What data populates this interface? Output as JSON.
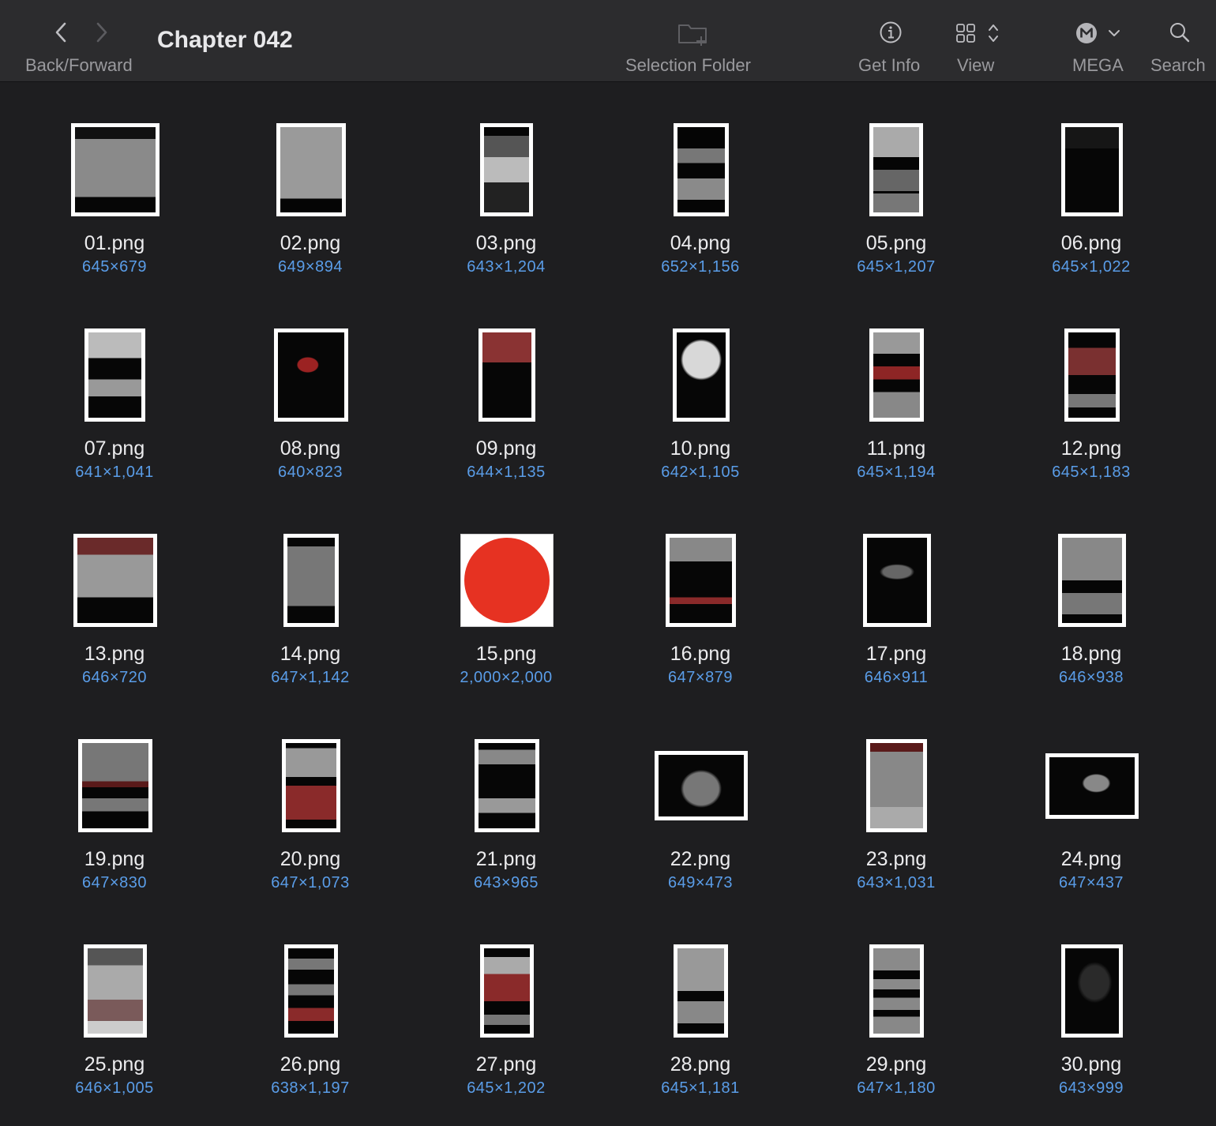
{
  "toolbar": {
    "back_forward_label": "Back/Forward",
    "title": "Chapter 042",
    "selection_folder_label": "Selection Folder",
    "get_info_label": "Get Info",
    "view_label": "View",
    "mega_label": "MEGA",
    "search_label": "Search"
  },
  "files": [
    {
      "name": "01.png",
      "dims": "645×679"
    },
    {
      "name": "02.png",
      "dims": "649×894"
    },
    {
      "name": "03.png",
      "dims": "643×1,204"
    },
    {
      "name": "04.png",
      "dims": "652×1,156"
    },
    {
      "name": "05.png",
      "dims": "645×1,207"
    },
    {
      "name": "06.png",
      "dims": "645×1,022"
    },
    {
      "name": "07.png",
      "dims": "641×1,041"
    },
    {
      "name": "08.png",
      "dims": "640×823"
    },
    {
      "name": "09.png",
      "dims": "644×1,135"
    },
    {
      "name": "10.png",
      "dims": "642×1,105"
    },
    {
      "name": "11.png",
      "dims": "645×1,194"
    },
    {
      "name": "12.png",
      "dims": "645×1,183"
    },
    {
      "name": "13.png",
      "dims": "646×720"
    },
    {
      "name": "14.png",
      "dims": "647×1,142"
    },
    {
      "name": "15.png",
      "dims": "2,000×2,000"
    },
    {
      "name": "16.png",
      "dims": "647×879"
    },
    {
      "name": "17.png",
      "dims": "646×911"
    },
    {
      "name": "18.png",
      "dims": "646×938"
    },
    {
      "name": "19.png",
      "dims": "647×830"
    },
    {
      "name": "20.png",
      "dims": "647×1,073"
    },
    {
      "name": "21.png",
      "dims": "643×965"
    },
    {
      "name": "22.png",
      "dims": "649×473"
    },
    {
      "name": "23.png",
      "dims": "643×1,031"
    },
    {
      "name": "24.png",
      "dims": "647×437"
    },
    {
      "name": "25.png",
      "dims": "646×1,005"
    },
    {
      "name": "26.png",
      "dims": "638×1,197"
    },
    {
      "name": "27.png",
      "dims": "645×1,202"
    },
    {
      "name": "28.png",
      "dims": "645×1,181"
    },
    {
      "name": "29.png",
      "dims": "647×1,180"
    },
    {
      "name": "30.png",
      "dims": "643×999"
    }
  ],
  "colors": {
    "toolbar_bg": "#2c2c2e",
    "content_bg": "#1e1e20",
    "filename_text": "#ececee",
    "dimension_text": "#5a9de8",
    "red_circle": "#e63222"
  },
  "icons": {
    "back": "chevron-left-icon",
    "forward": "chevron-right-icon",
    "selection_folder": "folder-plus-icon",
    "get_info": "info-circle-icon",
    "view": "grid-view-icon",
    "mega": "mega-logo-icon",
    "search": "magnifier-icon"
  }
}
